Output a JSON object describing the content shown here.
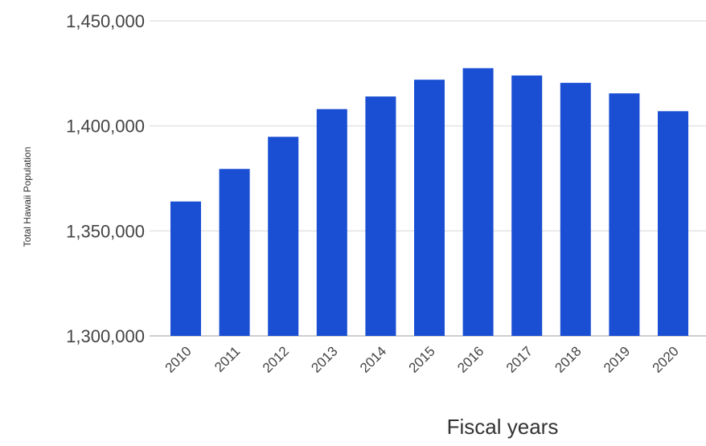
{
  "chart_data": {
    "type": "bar",
    "title": "",
    "xlabel": "Fiscal years",
    "ylabel": "Total Hawaii Population",
    "categories": [
      "2010",
      "2011",
      "2012",
      "2013",
      "2014",
      "2015",
      "2016",
      "2017",
      "2018",
      "2019",
      "2020"
    ],
    "series": [
      {
        "values": [
          1364000,
          1379500,
          1394800,
          1408000,
          1414000,
          1422000,
          1427500,
          1424000,
          1420500,
          1415500,
          1407000
        ],
        "color": "#1a4fd3"
      }
    ],
    "ylim": [
      1300000,
      1450000
    ],
    "yticks": [
      "1,300,000",
      "1,350,000",
      "1,400,000",
      "1,450,000"
    ],
    "ytick_values": [
      1300000,
      1350000,
      1400000,
      1450000
    ],
    "grid": true,
    "legend": "none"
  }
}
